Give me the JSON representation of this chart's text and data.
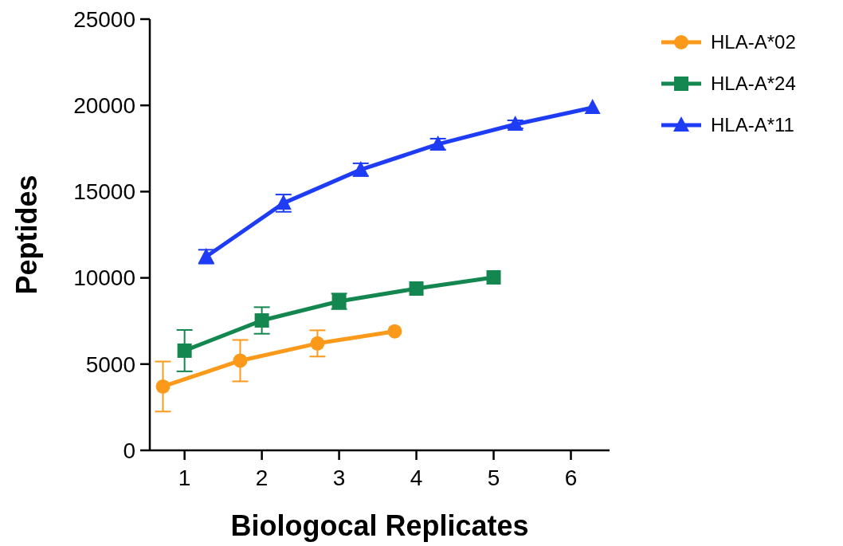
{
  "chart_data": {
    "type": "line",
    "xlabel": "Biologocal Replicates",
    "ylabel": "Peptides",
    "xlim": [
      0.55,
      6.5
    ],
    "xticks": [
      1,
      2,
      3,
      4,
      5,
      6
    ],
    "ylim": [
      0,
      25000
    ],
    "yticks": [
      0,
      5000,
      10000,
      15000,
      20000,
      25000
    ],
    "grid": false,
    "legend": "top right",
    "line_style": "solid",
    "series": [
      {
        "name": "HLA-A*02",
        "color": "#fb9a1a",
        "marker": "circle",
        "x": [
          0.72,
          1.72,
          2.72,
          3.72
        ],
        "values": [
          3700,
          5200,
          6200,
          6900
        ],
        "errors": [
          1450,
          1200,
          760,
          null
        ]
      },
      {
        "name": "HLA-A*24",
        "color": "#13874f",
        "marker": "square",
        "x": [
          1,
          2,
          3,
          4,
          5
        ],
        "values": [
          5780,
          7530,
          8640,
          9380,
          10030
        ],
        "errors": [
          1200,
          770,
          450,
          null,
          null
        ]
      },
      {
        "name": "HLA-A*11",
        "color": "#1f3cf5",
        "marker": "triangle",
        "x": [
          1.28,
          2.28,
          3.28,
          4.28,
          5.28,
          6.28
        ],
        "values": [
          11230,
          14330,
          16270,
          17750,
          18900,
          19870
        ],
        "errors": [
          400,
          500,
          370,
          320,
          230,
          null
        ]
      }
    ]
  }
}
